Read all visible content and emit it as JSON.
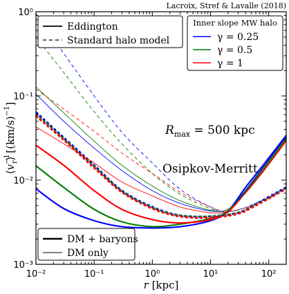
{
  "credit": "Lacroix, Stref & Lavalle (2018)",
  "chart_data": {
    "type": "line",
    "xlabel": "r [kpc]",
    "ylabel": "⟨v_r^{-1}⟩ [(km/s)^{-1}]",
    "xscale": "log",
    "yscale": "log",
    "xlim": [
      0.01,
      200
    ],
    "ylim": [
      0.001,
      1
    ],
    "x_ticks": [
      "10⁻²",
      "10⁻¹",
      "10⁰",
      "10¹",
      "10²"
    ],
    "y_ticks": [
      "10⁻³",
      "10⁻²",
      "10⁻¹",
      "10⁰"
    ],
    "annotations": [
      "R_max = 500 kpc",
      "Osipkov-Merritt"
    ],
    "legend_method": {
      "placement": "top-left",
      "entries": [
        {
          "label": "Eddington",
          "style": "solid"
        },
        {
          "label": "Standard halo model",
          "style": "dashed"
        }
      ]
    },
    "legend_slope": {
      "placement": "top-right",
      "title": "Inner slope MW halo",
      "entries": [
        {
          "label": "γ = 0.25",
          "color": "#0000ff"
        },
        {
          "label": "γ = 0.5",
          "color": "#008000"
        },
        {
          "label": "γ = 1",
          "color": "#ff0000"
        }
      ]
    },
    "legend_mass": {
      "placement": "bottom-left",
      "entries": [
        {
          "label": "DM + baryons",
          "width": "thick"
        },
        {
          "label": "DM only",
          "width": "thin"
        }
      ]
    },
    "series": [
      {
        "color": "#0000ff",
        "width": "thick",
        "style": "solid",
        "points": [
          [
            0.01,
            0.0079
          ],
          [
            0.03,
            0.0046
          ],
          [
            0.1,
            0.0033
          ],
          [
            0.3,
            0.0028
          ],
          [
            1,
            0.0027
          ],
          [
            3,
            0.0028
          ],
          [
            10,
            0.0033
          ],
          [
            20,
            0.0043
          ],
          [
            40,
            0.0082
          ],
          [
            80,
            0.015
          ],
          [
            200,
            0.034
          ]
        ]
      },
      {
        "color": "#008000",
        "width": "thick",
        "style": "solid",
        "points": [
          [
            0.01,
            0.0148
          ],
          [
            0.03,
            0.0082
          ],
          [
            0.1,
            0.0045
          ],
          [
            0.3,
            0.0032
          ],
          [
            1,
            0.0028
          ],
          [
            3,
            0.003
          ],
          [
            10,
            0.0035
          ],
          [
            20,
            0.0043
          ],
          [
            40,
            0.0075
          ],
          [
            80,
            0.014
          ],
          [
            200,
            0.032
          ]
        ]
      },
      {
        "color": "#ff0000",
        "width": "thick",
        "style": "solid",
        "points": [
          [
            0.01,
            0.026
          ],
          [
            0.03,
            0.015
          ],
          [
            0.1,
            0.0075
          ],
          [
            0.3,
            0.0045
          ],
          [
            1,
            0.0034
          ],
          [
            3,
            0.0031
          ],
          [
            10,
            0.0034
          ],
          [
            20,
            0.0042
          ],
          [
            40,
            0.0072
          ],
          [
            80,
            0.013
          ],
          [
            200,
            0.03
          ]
        ]
      },
      {
        "color": "#0000ff",
        "width": "thick",
        "style": "dashed",
        "points": [
          [
            0.01,
            0.064
          ],
          [
            0.03,
            0.032
          ],
          [
            0.1,
            0.015
          ],
          [
            0.3,
            0.0075
          ],
          [
            1,
            0.0048
          ],
          [
            3,
            0.0038
          ],
          [
            10,
            0.0037
          ],
          [
            30,
            0.0041
          ],
          [
            60,
            0.0052
          ],
          [
            200,
            0.0082
          ]
        ]
      },
      {
        "color": "#008000",
        "width": "thick",
        "style": "dashed",
        "points": [
          [
            0.01,
            0.061
          ],
          [
            0.03,
            0.031
          ],
          [
            0.1,
            0.0145
          ],
          [
            0.3,
            0.0074
          ],
          [
            1,
            0.0047
          ],
          [
            3,
            0.0038
          ],
          [
            10,
            0.0037
          ],
          [
            30,
            0.0041
          ],
          [
            60,
            0.0051
          ],
          [
            200,
            0.008
          ]
        ]
      },
      {
        "color": "#ff0000",
        "width": "thick",
        "style": "dashed",
        "points": [
          [
            0.01,
            0.058
          ],
          [
            0.03,
            0.03
          ],
          [
            0.1,
            0.014
          ],
          [
            0.3,
            0.0072
          ],
          [
            1,
            0.0046
          ],
          [
            3,
            0.0037
          ],
          [
            10,
            0.0036
          ],
          [
            30,
            0.004
          ],
          [
            60,
            0.005
          ],
          [
            200,
            0.0079
          ]
        ]
      },
      {
        "color": "#0000ff",
        "width": "thin",
        "style": "solid",
        "points": [
          [
            0.01,
            0.105
          ],
          [
            0.03,
            0.05
          ],
          [
            0.1,
            0.024
          ],
          [
            0.3,
            0.013
          ],
          [
            1,
            0.0075
          ],
          [
            3,
            0.0053
          ],
          [
            10,
            0.0043
          ],
          [
            20,
            0.0045
          ],
          [
            40,
            0.0075
          ],
          [
            80,
            0.014
          ],
          [
            200,
            0.033
          ]
        ]
      },
      {
        "color": "#008000",
        "width": "thin",
        "style": "solid",
        "points": [
          [
            0.01,
            0.128
          ],
          [
            0.03,
            0.063
          ],
          [
            0.1,
            0.029
          ],
          [
            0.3,
            0.015
          ],
          [
            1,
            0.0085
          ],
          [
            3,
            0.0057
          ],
          [
            10,
            0.0044
          ],
          [
            20,
            0.0045
          ],
          [
            40,
            0.0072
          ],
          [
            80,
            0.013
          ],
          [
            200,
            0.031
          ]
        ]
      },
      {
        "color": "#ff0000",
        "width": "thin",
        "style": "solid",
        "points": [
          [
            0.01,
            0.043
          ],
          [
            0.03,
            0.027
          ],
          [
            0.1,
            0.016
          ],
          [
            0.3,
            0.0095
          ],
          [
            1,
            0.0065
          ],
          [
            3,
            0.0048
          ],
          [
            10,
            0.0041
          ],
          [
            20,
            0.0043
          ],
          [
            40,
            0.007
          ],
          [
            80,
            0.0125
          ],
          [
            200,
            0.029
          ]
        ]
      },
      {
        "color": "#0000ff",
        "width": "thin",
        "style": "dashed",
        "points": [
          [
            0.01,
            0.95
          ],
          [
            0.03,
            0.32
          ],
          [
            0.1,
            0.1
          ],
          [
            0.3,
            0.037
          ],
          [
            1,
            0.016
          ],
          [
            3,
            0.0078
          ],
          [
            10,
            0.0048
          ],
          [
            20,
            0.0042
          ],
          [
            60,
            0.0053
          ],
          [
            200,
            0.0082
          ]
        ]
      },
      {
        "color": "#008000",
        "width": "thin",
        "style": "dashed",
        "points": [
          [
            0.01,
            0.5
          ],
          [
            0.03,
            0.19
          ],
          [
            0.1,
            0.065
          ],
          [
            0.3,
            0.027
          ],
          [
            1,
            0.012
          ],
          [
            3,
            0.0068
          ],
          [
            10,
            0.0046
          ],
          [
            20,
            0.0042
          ],
          [
            60,
            0.0052
          ],
          [
            200,
            0.0081
          ]
        ]
      },
      {
        "color": "#ff0000",
        "width": "thin",
        "style": "dashed",
        "points": [
          [
            0.01,
            0.12
          ],
          [
            0.03,
            0.07
          ],
          [
            0.1,
            0.038
          ],
          [
            0.3,
            0.021
          ],
          [
            1,
            0.012
          ],
          [
            3,
            0.0072
          ],
          [
            10,
            0.0048
          ],
          [
            20,
            0.0043
          ],
          [
            60,
            0.0051
          ],
          [
            200,
            0.0079
          ]
        ]
      }
    ]
  }
}
